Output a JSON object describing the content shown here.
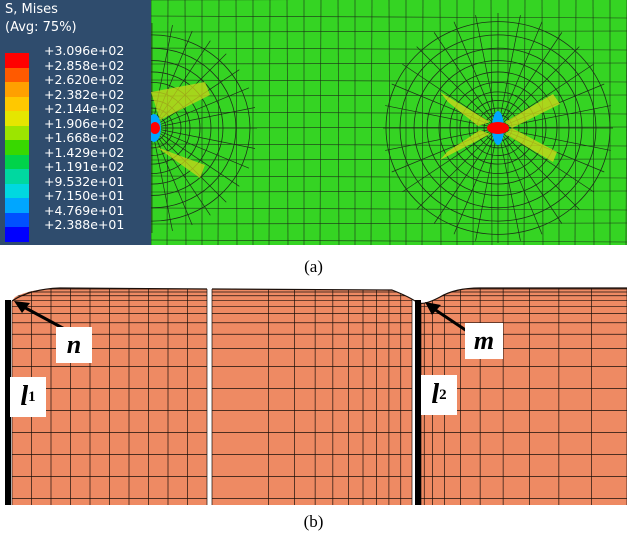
{
  "figure_a": {
    "legend_title_1": "S, Mises",
    "legend_title_2": "(Avg: 75%)",
    "legend_values": [
      "+3.096e+02",
      "+2.858e+02",
      "+2.620e+02",
      "+2.382e+02",
      "+2.144e+02",
      "+1.906e+02",
      "+1.668e+02",
      "+1.429e+02",
      "+1.191e+02",
      "+9.532e+01",
      "+7.150e+01",
      "+4.769e+01",
      "+2.388e+01"
    ],
    "legend_colors": [
      "#ff0000",
      "#ff5a00",
      "#ffa000",
      "#ffc800",
      "#e5e600",
      "#9ce500",
      "#38d800",
      "#00d34a",
      "#00d8a0",
      "#00d8e0",
      "#00a6ff",
      "#0050ff",
      "#0000ff"
    ],
    "background_color": "#35d423",
    "mesh_color": "#1c3018",
    "caption": "(a)"
  },
  "figure_b": {
    "fill_color": "#ee8a63",
    "mesh_color": "#1a0f0a",
    "label_n": "n",
    "label_m": "m",
    "label_l": "l",
    "label_l1_sub": "1",
    "label_l2_sub": "2",
    "caption": "(b)"
  }
}
